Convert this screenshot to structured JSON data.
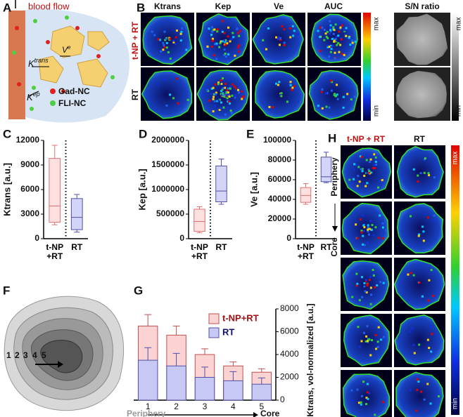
{
  "panel_a": {
    "label": "A",
    "blood_flow": "blood flow",
    "ktrans": {
      "symbol": "K",
      "superscript": "trans"
    },
    "ve": {
      "symbol": "V",
      "superscript": "e"
    },
    "kep": {
      "symbol": "K",
      "superscript": "ep"
    },
    "legend": [
      "Gad-NC",
      "FLI-NC"
    ]
  },
  "panel_b": {
    "label": "B",
    "columns": [
      "Ktrans",
      "Kep",
      "Ve",
      "AUC",
      "S/N ratio"
    ],
    "rows": [
      "t-NP + RT",
      "RT"
    ],
    "colorbar": {
      "max": "max",
      "min": "min"
    },
    "gray_colorbar": {
      "max": "max",
      "min": "min"
    }
  },
  "panel_f": {
    "label": "F",
    "zones": [
      "1",
      "2",
      "3",
      "4",
      "5"
    ]
  },
  "panel_h": {
    "label": "H",
    "columns": [
      "t-NP + RT",
      "RT"
    ],
    "direction_start": "Periphery",
    "direction_end": "Core",
    "colorbar": {
      "max": "max",
      "min": "min"
    }
  },
  "chart_data": [
    {
      "type": "box",
      "panel_label": "C",
      "ylabel": "Ktrans [a.u.]",
      "ylim": [
        0,
        12000
      ],
      "yticks": [
        0,
        3000,
        6000,
        9000,
        12000
      ],
      "categories": [
        "t-NP\n+RT",
        "RT"
      ],
      "boxes": [
        {
          "color": "#e07070",
          "fill": "#fde0e0",
          "whisker_low": 1700,
          "q1": 2000,
          "median": 4000,
          "q3": 9800,
          "whisker_high": 11400
        },
        {
          "color": "#5050a8",
          "fill": "#d4d4f8",
          "whisker_low": 800,
          "q1": 1100,
          "median": 2600,
          "q3": 4900,
          "whisker_high": 5400
        }
      ]
    },
    {
      "type": "box",
      "panel_label": "D",
      "ylabel": "Kep [a.u.]",
      "ylim": [
        0,
        2000000
      ],
      "yticks": [
        0,
        500000,
        1000000,
        1500000,
        2000000
      ],
      "categories": [
        "t-NP\n+RT",
        "RT"
      ],
      "boxes": [
        {
          "color": "#e07070",
          "fill": "#fde0e0",
          "whisker_low": 120000,
          "q1": 150000,
          "median": 350000,
          "q3": 600000,
          "whisker_high": 650000
        },
        {
          "color": "#5050a8",
          "fill": "#d4d4f8",
          "whisker_low": 700000,
          "q1": 750000,
          "median": 970000,
          "q3": 1480000,
          "whisker_high": 1620000
        }
      ]
    },
    {
      "type": "box",
      "panel_label": "E",
      "ylabel": "Ve [a.u.]",
      "ylim": [
        0,
        100000
      ],
      "yticks": [
        0,
        20000,
        40000,
        60000,
        80000,
        100000
      ],
      "categories": [
        "t-NP\n+RT",
        "RT"
      ],
      "boxes": [
        {
          "color": "#e07070",
          "fill": "#fde0e0",
          "whisker_low": 35000,
          "q1": 37000,
          "median": 44000,
          "q3": 52000,
          "whisker_high": 56000
        },
        {
          "color": "#5050a8",
          "fill": "#d4d4f8",
          "whisker_low": 57000,
          "q1": 58000,
          "median": 63000,
          "q3": 83000,
          "whisker_high": 88000
        }
      ]
    },
    {
      "type": "bar",
      "panel_label": "G",
      "ylabel": "Ktrans, vol-normalized [a.u.]",
      "ylim": [
        0,
        8000
      ],
      "yticks": [
        0,
        2000,
        4000,
        6000,
        8000
      ],
      "categories": [
        "1",
        "2",
        "3",
        "4",
        "5"
      ],
      "xlabel_left": "Periphery",
      "xlabel_right": "Core",
      "series": [
        {
          "name": "t-NP+RT",
          "color": "#fbd3d3",
          "stroke": "#c05050",
          "legend_color": "#a01010",
          "values": [
            6500,
            5700,
            4000,
            3000,
            2450
          ],
          "errors": [
            1000,
            800,
            500,
            350,
            300
          ]
        },
        {
          "name": "RT",
          "color": "#c8c8f4",
          "stroke": "#5050a8",
          "legend_color": "#101070",
          "values": [
            3500,
            3000,
            2000,
            1700,
            1400
          ],
          "errors": [
            1100,
            1100,
            900,
            800,
            550
          ]
        }
      ]
    }
  ]
}
